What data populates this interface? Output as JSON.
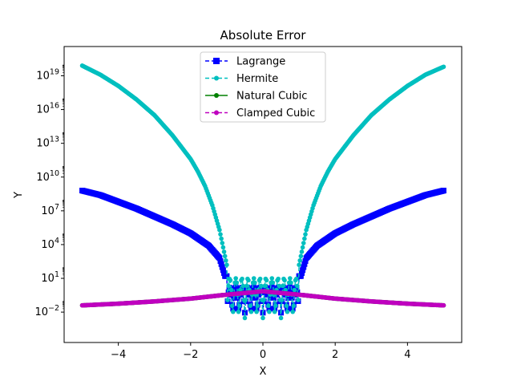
{
  "chart_data": {
    "type": "line",
    "title": "Absolute Error",
    "xlabel": "X",
    "ylabel": "Y",
    "xlim": [
      -5.5,
      5.5
    ],
    "ylim_log10": [
      -4.7,
      21.6
    ],
    "yscale": "log",
    "x_ticks": [
      -4,
      -2,
      0,
      2,
      4
    ],
    "x_tick_labels": [
      "−4",
      "−2",
      "0",
      "2",
      "4"
    ],
    "y_ticks_log10": [
      -2,
      1,
      4,
      7,
      10,
      13,
      16,
      19
    ],
    "y_tick_bases": [
      "10",
      "10",
      "10",
      "10",
      "10",
      "10",
      "10",
      "10"
    ],
    "y_tick_exponents": [
      "−2",
      "1",
      "4",
      "7",
      "10",
      "13",
      "16",
      "19"
    ],
    "legend_position": "top-center",
    "series": [
      {
        "name": "Lagrange",
        "color": "#0000ff",
        "linestyle": "dashed",
        "marker": "square",
        "x": [
          -5.0,
          -4.5,
          -4.0,
          -3.5,
          -3.0,
          -2.5,
          -2.0,
          -1.5,
          -1.2,
          -1.05,
          1.05,
          1.2,
          1.5,
          2.0,
          2.5,
          3.0,
          3.5,
          4.0,
          4.5,
          5.0
        ],
        "y_log10": [
          8.8,
          8.4,
          7.8,
          7.2,
          6.5,
          5.8,
          5.0,
          3.9,
          2.8,
          1.2,
          1.2,
          2.8,
          3.9,
          5.0,
          5.8,
          6.5,
          7.2,
          7.8,
          8.4,
          8.8
        ]
      },
      {
        "name": "Hermite",
        "color": "#00bfbf",
        "linestyle": "dashed",
        "marker": "circle",
        "x": [
          -5.0,
          -4.5,
          -4.0,
          -3.5,
          -3.0,
          -2.5,
          -2.0,
          -1.8,
          -1.6,
          -1.4,
          -1.2,
          -1.0,
          1.0,
          1.2,
          1.4,
          1.6,
          1.8,
          2.0,
          2.5,
          3.0,
          3.5,
          4.0,
          4.5,
          5.0
        ],
        "y_log10": [
          19.9,
          19.1,
          18.1,
          16.9,
          15.5,
          13.7,
          11.6,
          10.5,
          9.2,
          7.5,
          5.3,
          2.2,
          2.2,
          5.3,
          7.5,
          9.2,
          10.5,
          11.6,
          13.7,
          15.5,
          16.9,
          18.1,
          19.1,
          19.8
        ]
      },
      {
        "name": "Natural Cubic",
        "color": "#008000",
        "linestyle": "solid",
        "marker": "circle",
        "x": [
          -5.0,
          -4.0,
          -3.0,
          -2.0,
          -1.0,
          0.0,
          1.0,
          2.0,
          3.0,
          4.0,
          5.0
        ],
        "y_log10": [
          -1.4,
          -1.25,
          -1.05,
          -0.8,
          -0.45,
          -0.15,
          -0.45,
          -0.8,
          -1.05,
          -1.25,
          -1.4
        ]
      },
      {
        "name": "Clamped Cubic",
        "color": "#bf00bf",
        "linestyle": "dashed",
        "marker": "circle",
        "x": [
          -5.0,
          -4.0,
          -3.0,
          -2.0,
          -1.0,
          0.0,
          1.0,
          2.0,
          3.0,
          4.0,
          5.0
        ],
        "y_log10": [
          -1.4,
          -1.25,
          -1.05,
          -0.8,
          -0.45,
          -0.15,
          -0.45,
          -0.8,
          -1.05,
          -1.25,
          -1.4
        ]
      }
    ],
    "central_oscillation": {
      "x_range": [
        -1.0,
        1.0
      ],
      "lagrange_y_log10_range": [
        -2.8,
        0.2
      ],
      "hermite_y_log10_range": [
        -3.7,
        1.0
      ]
    }
  }
}
